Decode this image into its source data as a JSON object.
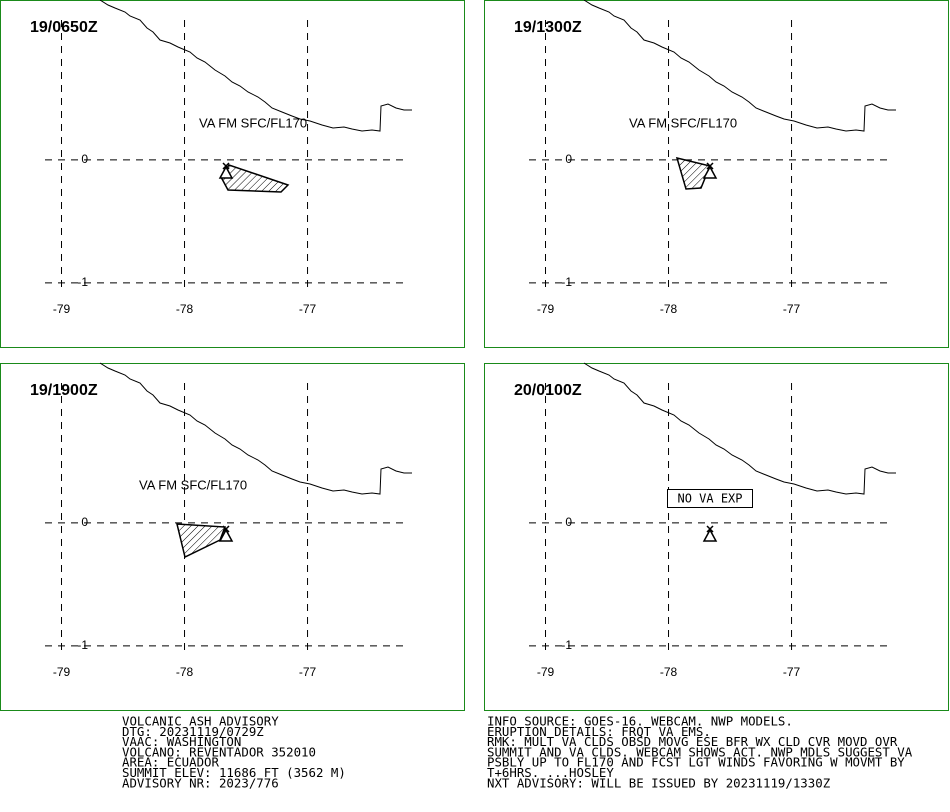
{
  "map": {
    "lonlim": [
      -79.5,
      -75.72
    ],
    "latlim": [
      -1.53,
      1.3
    ],
    "lon_ticks": [
      -79,
      -78,
      -77
    ],
    "lat_ticks": [
      0,
      -1
    ],
    "panels": [
      {
        "time": "19/0650Z",
        "label": "VA FM SFC/FL170"
      },
      {
        "time": "19/1300Z",
        "label": "VA FM SFC/FL170"
      },
      {
        "time": "19/1900Z",
        "label": "VA FM SFC/FL170"
      },
      {
        "time": "20/0100Z",
        "label": "NO VA EXP"
      }
    ]
  },
  "advisory_left": [
    "VOLCANIC ASH ADVISORY",
    "DTG: 20231119/0729Z",
    "VAAC: WASHINGTON",
    "VOLCANO: REVENTADOR 352010",
    "AREA: ECUADOR",
    "SUMMIT ELEV: 11686 FT (3562 M)",
    "ADVISORY NR: 2023/776"
  ],
  "advisory_right": [
    "INFO SOURCE: GOES-16. WEBCAM. NWP MODELS.",
    "ERUPTION DETAILS: FRQT VA EMS.",
    "RMK: MULT VA CLDS OBSD MOVG ESE BFR WX CLD CVR MOVD OVR",
    "SUMMIT AND VA CLDS. WEBCAM SHOWS ACT. NWP MDLS SUGGEST VA",
    "PSBLY UP TO FL170 AND FCST LGT WINDS FAVORING W MOVMT BY",
    "T+6HRS. ...HOSLEY",
    "NXT ADVISORY: WILL BE ISSUED BY 20231119/1330Z"
  ]
}
